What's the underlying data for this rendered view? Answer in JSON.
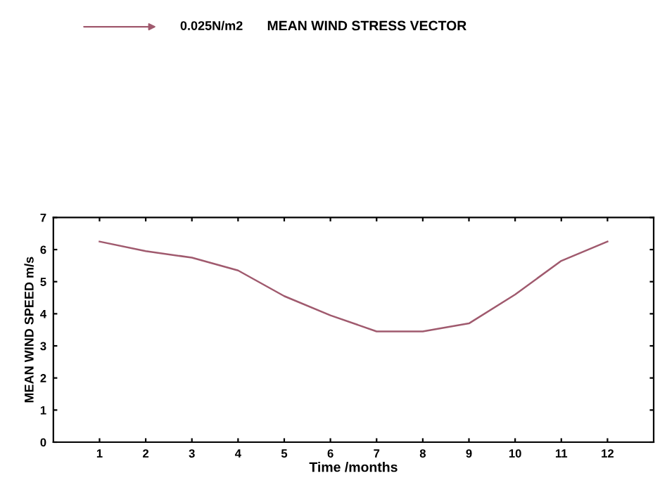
{
  "chart_data": [
    {
      "type": "other",
      "title": "MEAN WIND STRESS VECTOR",
      "annotations": [
        "0.025N/m2"
      ]
    },
    {
      "type": "line",
      "xlabel": "Time /months",
      "ylabel": "MEAN WIND SPEED m/s",
      "x": [
        1,
        2,
        3,
        4,
        5,
        6,
        7,
        8,
        9,
        10,
        11,
        12
      ],
      "series": [
        {
          "color": "#a05a6e",
          "values": [
            6.25,
            5.95,
            5.75,
            5.35,
            4.55,
            3.95,
            3.45,
            3.45,
            3.7,
            4.6,
            5.65,
            6.25
          ]
        }
      ],
      "xlim": [
        0,
        13
      ],
      "xticks": [
        1,
        2,
        3,
        4,
        5,
        6,
        7,
        8,
        9,
        10,
        11,
        12
      ],
      "ylim": [
        0,
        7
      ],
      "yticks": [
        0,
        1,
        2,
        3,
        4,
        5,
        6,
        7
      ],
      "grid": false,
      "legend": false,
      "marker": "none",
      "line_style": "solid"
    }
  ]
}
